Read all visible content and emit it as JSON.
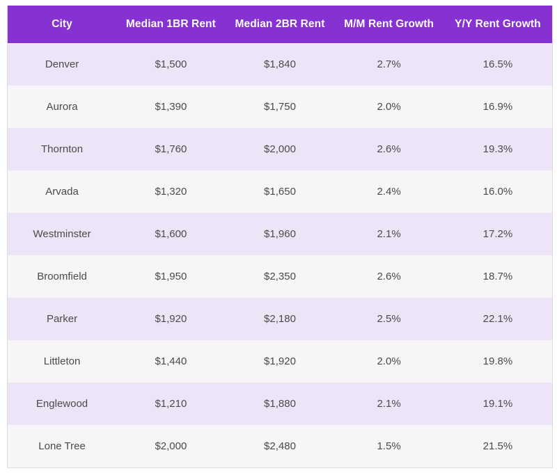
{
  "chart_data": {
    "type": "table",
    "columns": [
      "City",
      "Median 1BR Rent",
      "Median 2BR Rent",
      "M/M Rent Growth",
      "Y/Y Rent Growth"
    ],
    "rows": [
      [
        "Denver",
        "$1,500",
        "$1,840",
        "2.7%",
        "16.5%"
      ],
      [
        "Aurora",
        "$1,390",
        "$1,750",
        "2.0%",
        "16.9%"
      ],
      [
        "Thornton",
        "$1,760",
        "$2,000",
        "2.6%",
        "19.3%"
      ],
      [
        "Arvada",
        "$1,320",
        "$1,650",
        "2.4%",
        "16.0%"
      ],
      [
        "Westminster",
        "$1,600",
        "$1,960",
        "2.1%",
        "17.2%"
      ],
      [
        "Broomfield",
        "$1,950",
        "$2,350",
        "2.6%",
        "18.7%"
      ],
      [
        "Parker",
        "$1,920",
        "$2,180",
        "2.5%",
        "22.1%"
      ],
      [
        "Littleton",
        "$1,440",
        "$1,920",
        "2.0%",
        "19.8%"
      ],
      [
        "Englewood",
        "$1,210",
        "$1,880",
        "2.1%",
        "19.1%"
      ],
      [
        "Lone Tree",
        "$2,000",
        "$2,480",
        "1.5%",
        "21.5%"
      ]
    ]
  },
  "colors": {
    "header-bg": "#8631d1",
    "header-text": "#ffffff",
    "row-odd": "#ede5f7",
    "row-even": "#f8f5f8",
    "body-text": "#4a4a4a",
    "border": "#dcdcdc"
  }
}
